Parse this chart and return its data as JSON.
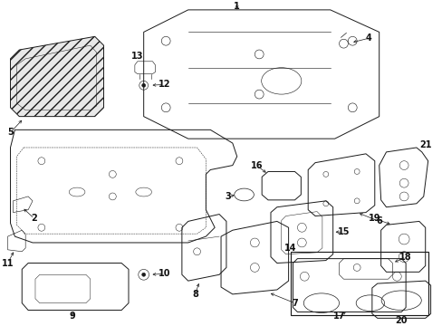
{
  "background_color": "#ffffff",
  "figure_width": 4.89,
  "figure_height": 3.6,
  "dpi": 100,
  "line_color": "#1a1a1a",
  "lw": 0.7
}
